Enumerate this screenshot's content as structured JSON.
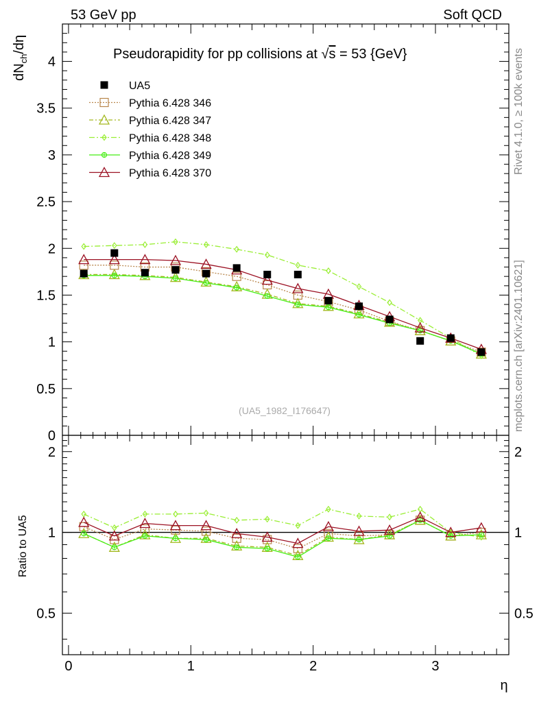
{
  "header": {
    "left_label": "53 GeV pp",
    "right_label": "Soft QCD",
    "title_prefix": "Pseudorapidity for pp collisions at ",
    "title_sqrt": "√",
    "title_s": "s",
    "title_suffix": " = 53 {GeV}",
    "side_rivet": "Rivet 4.1.0, ≥ 100k events",
    "side_mcplots": "mcplots.cern.ch [arXiv:2401.10621]",
    "analysis_id": "(UA5_1982_I176647)"
  },
  "chart_data": {
    "type": "line",
    "title": "Pseudorapidity for pp collisions at √s = 53 {GeV}",
    "xlabel": "η",
    "ylabel_main": "dNch/dη",
    "ylabel_main_parts": {
      "base": "dN",
      "sub": "ch",
      "tail": "/dη"
    },
    "ylabel_ratio": "Ratio to UA5",
    "xlim": [
      -0.05,
      3.6
    ],
    "ylim_main": [
      0,
      4.4
    ],
    "ylim_ratio": [
      0.35,
      2.3
    ],
    "x_ticks": [
      0,
      1,
      2,
      3
    ],
    "x_tick_labels": [
      "0",
      "1",
      "2",
      "3"
    ],
    "y_ticks_main": [
      0,
      0.5,
      1,
      1.5,
      2,
      2.5,
      3,
      3.5,
      4
    ],
    "y_tick_labels_main": [
      "0",
      "0.5",
      "1",
      "1.5",
      "2",
      "2.5",
      "3",
      "3.5",
      "4"
    ],
    "y_ticks_ratio": [
      0.5,
      1,
      2
    ],
    "y_tick_labels_ratio": [
      "0.5",
      "1",
      "2"
    ],
    "x": [
      0.125,
      0.375,
      0.625,
      0.875,
      1.125,
      1.375,
      1.625,
      1.875,
      2.125,
      2.375,
      2.625,
      2.875,
      3.125,
      3.375
    ],
    "data": {
      "name": "UA5",
      "color": "#000000",
      "values": [
        1.73,
        1.95,
        1.74,
        1.77,
        1.73,
        1.79,
        1.72,
        1.72,
        1.44,
        1.38,
        1.24,
        1.01,
        1.04,
        0.89
      ]
    },
    "series": [
      {
        "name": "Pythia 6.428 346",
        "color": "#b8864b",
        "marker": "square",
        "dash": "2,2",
        "values": [
          1.82,
          1.82,
          1.8,
          1.8,
          1.75,
          1.7,
          1.61,
          1.5,
          1.43,
          1.34,
          1.22,
          1.12,
          1.01,
          0.89
        ],
        "ratio": [
          1.05,
          0.94,
          1.03,
          1.02,
          1.01,
          0.95,
          0.94,
          0.87,
          0.99,
          0.97,
          0.98,
          1.11,
          0.97,
          1.0
        ]
      },
      {
        "name": "Pythia 6.428 347",
        "color": "#a3b81f",
        "marker": "triangle",
        "dash": "6,3,2,3",
        "values": [
          1.72,
          1.72,
          1.71,
          1.69,
          1.64,
          1.59,
          1.51,
          1.41,
          1.38,
          1.3,
          1.21,
          1.12,
          1.01,
          0.87
        ],
        "ratio": [
          0.99,
          0.88,
          0.98,
          0.95,
          0.95,
          0.89,
          0.88,
          0.82,
          0.96,
          0.94,
          0.98,
          1.11,
          0.97,
          0.98
        ]
      },
      {
        "name": "Pythia 6.428 348",
        "color": "#99ee33",
        "marker": "diamond",
        "dash": "8,3,2,3",
        "values": [
          2.02,
          2.03,
          2.04,
          2.07,
          2.04,
          1.99,
          1.93,
          1.82,
          1.76,
          1.59,
          1.42,
          1.23,
          1.04,
          0.85
        ],
        "ratio": [
          1.17,
          1.04,
          1.17,
          1.17,
          1.18,
          1.11,
          1.12,
          1.06,
          1.22,
          1.15,
          1.14,
          1.22,
          1.0,
          0.96
        ]
      },
      {
        "name": "Pythia 6.428 349",
        "color": "#44ee11",
        "marker": "circle",
        "dash": "",
        "values": [
          1.71,
          1.71,
          1.7,
          1.68,
          1.63,
          1.58,
          1.49,
          1.4,
          1.37,
          1.29,
          1.2,
          1.12,
          1.01,
          0.87
        ],
        "ratio": [
          0.99,
          0.88,
          0.97,
          0.95,
          0.94,
          0.88,
          0.87,
          0.81,
          0.95,
          0.94,
          0.97,
          1.11,
          0.97,
          0.98
        ]
      },
      {
        "name": "Pythia 6.428 370",
        "color": "#9b1022",
        "marker": "triangle",
        "dash": "",
        "values": [
          1.88,
          1.88,
          1.88,
          1.87,
          1.83,
          1.77,
          1.66,
          1.57,
          1.51,
          1.39,
          1.27,
          1.15,
          1.04,
          0.92
        ],
        "ratio": [
          1.09,
          0.97,
          1.08,
          1.06,
          1.06,
          0.99,
          0.96,
          0.91,
          1.05,
          1.01,
          1.02,
          1.14,
          1.0,
          1.04
        ]
      }
    ]
  }
}
